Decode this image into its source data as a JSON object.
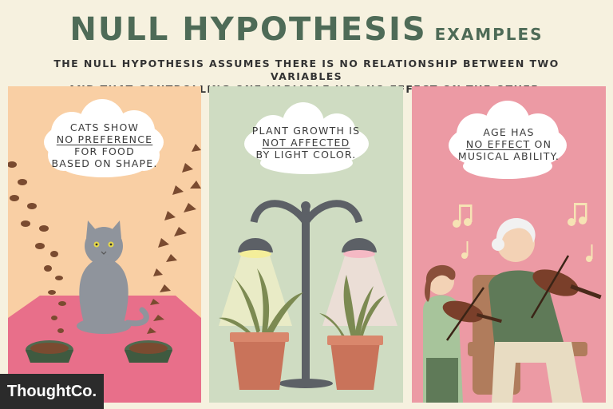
{
  "title": {
    "main": "NULL HYPOTHESIS",
    "sub": "EXAMPLES"
  },
  "subtitle": {
    "line1": "THE NULL HYPOTHESIS ASSUMES THERE IS NO RELATIONSHIP BETWEEN TWO VARIABLES",
    "line2": "AND THAT CONTROLLING ONE VARIABLE HAS NO EFFECT ON THE OTHER."
  },
  "panels": [
    {
      "line1": "CATS SHOW",
      "line2": "NO PREFERENCE",
      "line3": "FOR FOOD",
      "line4": "BASED ON SHAPE.",
      "icon": "cat-icon"
    },
    {
      "line1": "PLANT GROWTH IS",
      "line2": "NOT AFFECTED",
      "line3": "BY LIGHT COLOR.",
      "icon": "plant-lamp-icon"
    },
    {
      "line1": "AGE HAS",
      "line2": "NO EFFECT",
      "line3": "ON",
      "line4": "MUSICAL ABILITY.",
      "icon": "violin-icon"
    }
  ],
  "logo": {
    "text": "ThoughtCo."
  },
  "colors": {
    "title": "#4e6b57",
    "panel1": "#f9cfa4",
    "panel2": "#cfdcc2",
    "panel3": "#ec9aa4"
  }
}
